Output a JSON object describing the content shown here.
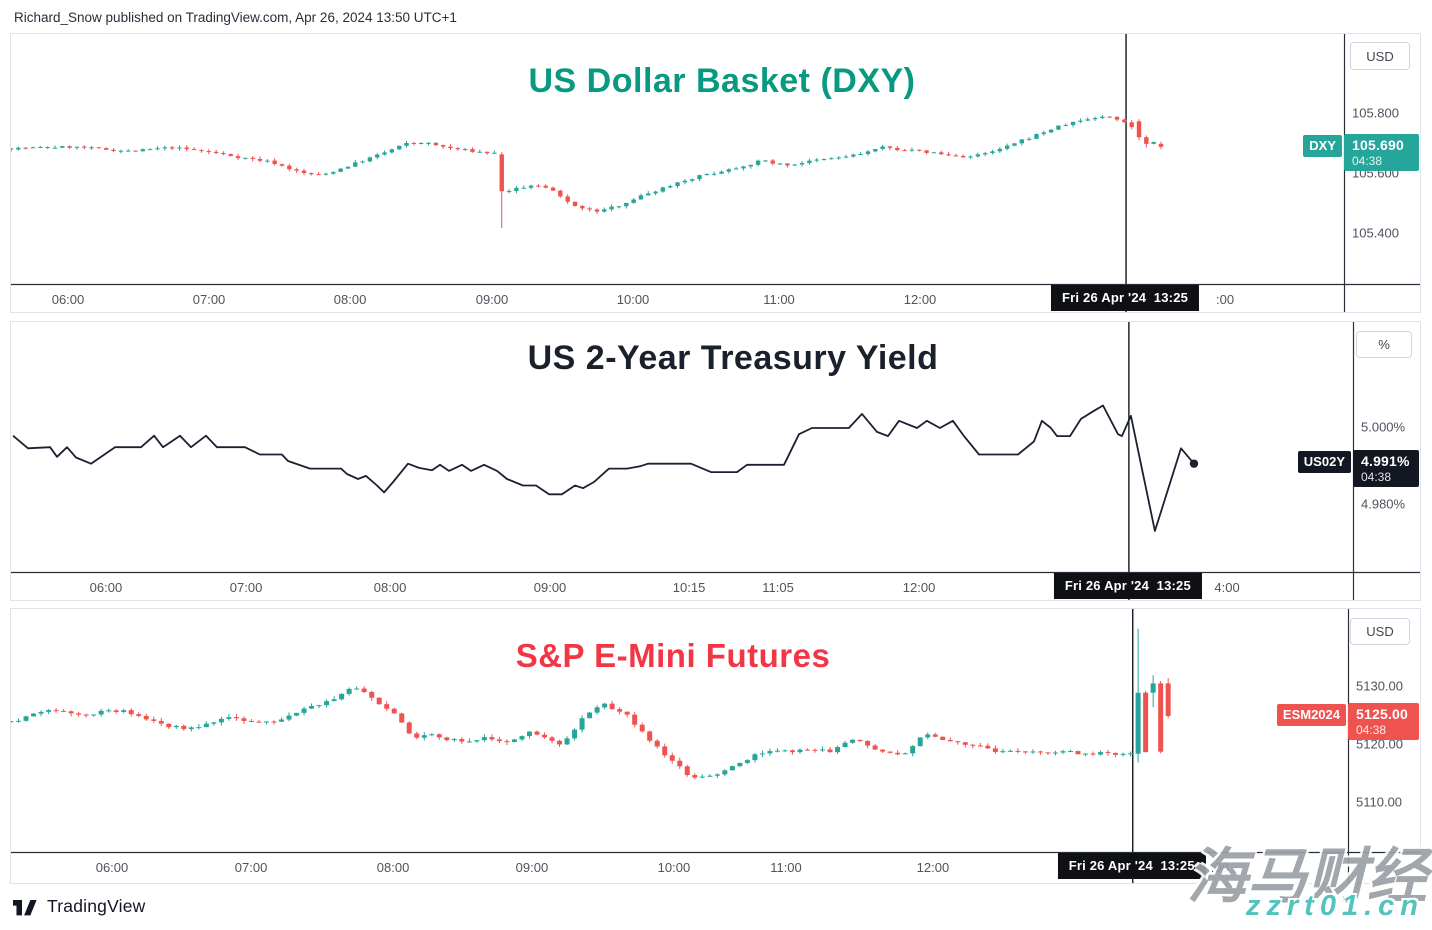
{
  "header": {
    "text": "Richard_Snow published on TradingView.com, Apr 26, 2024 13:50 UTC+1"
  },
  "footer": {
    "brand": "TradingView"
  },
  "watermark": {
    "line1": "海马财经",
    "color1": "#9aa0a6",
    "line2": "zzrt01.cn",
    "color2": "#53c3bd"
  },
  "colors": {
    "axis_line": "#2a2e39",
    "crosshair": "#131722",
    "up": "#26a69a",
    "down": "#ef5350"
  },
  "chart_data": [
    {
      "type": "candlestick",
      "title": "US Dollar Basket (DXY)",
      "title_color": "#089981",
      "unit": "USD",
      "symbol": "DXY",
      "last_value": "105.690",
      "last_change_time": "04:38",
      "last_price": 105.69,
      "label_bg": "#26a69a",
      "up_color": "#26a69a",
      "down_color": "#ef5350",
      "ylim": [
        105.233,
        106.066
      ],
      "y_ticks": [
        {
          "v": 105.8,
          "label": "105.800"
        },
        {
          "v": 105.6,
          "label": "105.600"
        },
        {
          "v": 105.4,
          "label": "105.400"
        }
      ],
      "x_ticks": [
        {
          "f": 0.0435,
          "label": "06:00"
        },
        {
          "f": 0.1493,
          "label": "07:00"
        },
        {
          "f": 0.2551,
          "label": "08:00"
        },
        {
          "f": 0.3616,
          "label": "09:00"
        },
        {
          "f": 0.4674,
          "label": "10:00"
        },
        {
          "f": 0.5769,
          "label": "11:00"
        },
        {
          "f": 0.6827,
          "label": "12:00"
        }
      ],
      "extra_tick": {
        "f": 0.9115,
        "label": ":00"
      },
      "crosshair_f": 0.8365,
      "date_label": "Fri 26 Apr '24  13:25",
      "anchors": [
        [
          0.0015,
          105.685
        ],
        [
          0.045,
          105.69
        ],
        [
          0.09,
          105.675
        ],
        [
          0.12,
          105.688
        ],
        [
          0.15,
          105.672
        ],
        [
          0.172,
          105.655
        ],
        [
          0.195,
          105.64
        ],
        [
          0.218,
          105.603
        ],
        [
          0.233,
          105.595
        ],
        [
          0.255,
          105.63
        ],
        [
          0.278,
          105.667
        ],
        [
          0.296,
          105.7
        ],
        [
          0.308,
          105.705
        ],
        [
          0.33,
          105.685
        ],
        [
          0.353,
          105.672
        ],
        [
          0.364,
          105.668
        ],
        [
          0.372,
          105.545
        ],
        [
          0.392,
          105.562
        ],
        [
          0.404,
          105.55
        ],
        [
          0.416,
          105.51
        ],
        [
          0.431,
          105.48
        ],
        [
          0.441,
          105.475
        ],
        [
          0.454,
          105.492
        ],
        [
          0.469,
          105.52
        ],
        [
          0.484,
          105.545
        ],
        [
          0.499,
          105.57
        ],
        [
          0.514,
          105.59
        ],
        [
          0.529,
          105.605
        ],
        [
          0.548,
          105.625
        ],
        [
          0.564,
          105.645
        ],
        [
          0.581,
          105.628
        ],
        [
          0.6,
          105.642
        ],
        [
          0.619,
          105.653
        ],
        [
          0.636,
          105.665
        ],
        [
          0.653,
          105.688
        ],
        [
          0.666,
          105.682
        ],
        [
          0.679,
          105.676
        ],
        [
          0.692,
          105.67
        ],
        [
          0.705,
          105.66
        ],
        [
          0.719,
          105.657
        ],
        [
          0.732,
          105.668
        ],
        [
          0.744,
          105.685
        ],
        [
          0.758,
          105.71
        ],
        [
          0.771,
          105.733
        ],
        [
          0.784,
          105.755
        ],
        [
          0.797,
          105.772
        ],
        [
          0.81,
          105.785
        ],
        [
          0.822,
          105.792
        ],
        [
          0.831,
          105.78
        ],
        [
          0.837,
          105.772
        ],
        [
          0.845,
          105.74
        ],
        [
          0.854,
          105.71
        ],
        [
          0.863,
          105.692
        ]
      ],
      "candles": {
        "count": 158,
        "last_f": 0.8627,
        "body_w": 4.4,
        "wick_noise": 0.008,
        "body_jitter": 0.008,
        "seed": 7,
        "overrides": [
          {
            "f": 0.3682,
            "o": 105.665,
            "h": 105.672,
            "l": 105.42,
            "c": 105.542
          },
          {
            "f": 0.8463,
            "o": 105.775,
            "h": 105.782,
            "l": 105.712,
            "c": 105.722
          },
          {
            "f": 0.8517,
            "o": 105.722,
            "h": 105.728,
            "l": 105.688,
            "c": 105.7
          },
          {
            "f": 0.8627,
            "o": 105.7,
            "h": 105.707,
            "l": 105.682,
            "c": 105.69
          }
        ]
      }
    },
    {
      "type": "line",
      "title": "US 2-Year Treasury Yield",
      "title_color": "#1b212c",
      "unit": "%",
      "symbol": "US02Y",
      "last_value": "4.991%",
      "last_change_time": "04:38",
      "last_price": 4.991,
      "label_bg": "#131722",
      "line_color": "#1c2030",
      "end_dot": true,
      "ylim": [
        4.9624,
        5.0277
      ],
      "y_ticks": [
        {
          "v": 5.0,
          "label": "5.000%"
        },
        {
          "v": 4.98,
          "label": "4.980%"
        }
      ],
      "x_ticks": [
        {
          "f": 0.0715,
          "label": "06:00"
        },
        {
          "f": 0.1759,
          "label": "07:00"
        },
        {
          "f": 0.2832,
          "label": "08:00"
        },
        {
          "f": 0.4024,
          "label": "09:00"
        },
        {
          "f": 0.506,
          "label": "10:15"
        },
        {
          "f": 0.5723,
          "label": "11:05"
        },
        {
          "f": 0.6774,
          "label": "12:00"
        }
      ],
      "extra_tick": {
        "f": 0.9069,
        "label": "4:00"
      },
      "crosshair_f": 0.833,
      "date_label": "Fri 26 Apr '24  13:25",
      "points": [
        [
          0.0015,
          4.998
        ],
        [
          0.0127,
          4.9947
        ],
        [
          0.0291,
          4.995
        ],
        [
          0.0343,
          4.9925
        ],
        [
          0.0417,
          4.995
        ],
        [
          0.0484,
          4.9923
        ],
        [
          0.0596,
          4.9907
        ],
        [
          0.0775,
          4.995
        ],
        [
          0.0969,
          4.995
        ],
        [
          0.1066,
          4.998
        ],
        [
          0.1133,
          4.995
        ],
        [
          0.1259,
          4.998
        ],
        [
          0.1341,
          4.995
        ],
        [
          0.1453,
          4.998
        ],
        [
          0.1535,
          4.995
        ],
        [
          0.1744,
          4.995
        ],
        [
          0.1855,
          4.9931
        ],
        [
          0.2019,
          4.9931
        ],
        [
          0.2064,
          4.9914
        ],
        [
          0.2228,
          4.9894
        ],
        [
          0.2459,
          4.9894
        ],
        [
          0.2504,
          4.988
        ],
        [
          0.2586,
          4.9867
        ],
        [
          0.2645,
          4.9875
        ],
        [
          0.2727,
          4.985
        ],
        [
          0.278,
          4.9832
        ],
        [
          0.2847,
          4.9859
        ],
        [
          0.2958,
          4.9907
        ],
        [
          0.304,
          4.9896
        ],
        [
          0.3137,
          4.989
        ],
        [
          0.3197,
          4.9904
        ],
        [
          0.3264,
          4.9888
        ],
        [
          0.3361,
          4.9904
        ],
        [
          0.3428,
          4.9888
        ],
        [
          0.3525,
          4.9904
        ],
        [
          0.3622,
          4.9888
        ],
        [
          0.3696,
          4.9867
        ],
        [
          0.3815,
          4.985
        ],
        [
          0.3912,
          4.985
        ],
        [
          0.4009,
          4.9827
        ],
        [
          0.4106,
          4.9827
        ],
        [
          0.4203,
          4.985
        ],
        [
          0.4262,
          4.9843
        ],
        [
          0.4344,
          4.9859
        ],
        [
          0.4456,
          4.9894
        ],
        [
          0.459,
          4.9894
        ],
        [
          0.4687,
          4.99
        ],
        [
          0.4747,
          4.9907
        ],
        [
          0.503,
          4.9907
        ],
        [
          0.5067,
          4.9907
        ],
        [
          0.5216,
          4.9885
        ],
        [
          0.541,
          4.9885
        ],
        [
          0.5484,
          4.9904
        ],
        [
          0.576,
          4.9904
        ],
        [
          0.5872,
          4.9984
        ],
        [
          0.5969,
          5.0
        ],
        [
          0.6244,
          5.0
        ],
        [
          0.6341,
          5.0037
        ],
        [
          0.6453,
          4.999
        ],
        [
          0.6535,
          4.9979
        ],
        [
          0.6617,
          5.0019
        ],
        [
          0.6751,
          5.0
        ],
        [
          0.6825,
          5.0019
        ],
        [
          0.6922,
          5.0
        ],
        [
          0.7019,
          5.0019
        ],
        [
          0.7101,
          4.9979
        ],
        [
          0.7213,
          4.9931
        ],
        [
          0.7504,
          4.9931
        ],
        [
          0.7623,
          4.9965
        ],
        [
          0.7682,
          5.0019
        ],
        [
          0.7749,
          5.0
        ],
        [
          0.7794,
          4.9979
        ],
        [
          0.7891,
          4.9979
        ],
        [
          0.7973,
          5.0024
        ],
        [
          0.807,
          5.0045
        ],
        [
          0.8137,
          5.0059
        ],
        [
          0.8249,
          4.9984
        ],
        [
          0.8278,
          4.9979
        ],
        [
          0.8345,
          5.0032
        ],
        [
          0.8524,
          4.9731
        ],
        [
          0.8718,
          4.9947
        ],
        [
          0.8815,
          4.9907
        ]
      ]
    },
    {
      "type": "candlestick",
      "title": "S&P E-Mini Futures",
      "title_color": "#f23645",
      "unit": "USD",
      "symbol": "ESM2024",
      "last_value": "5125.00",
      "last_change_time": "04:38",
      "last_price": 5125.0,
      "label_bg": "#ef5350",
      "up_color": "#26a69a",
      "down_color": "#ef5350",
      "ylim": [
        5101.6,
        5143.4
      ],
      "y_ticks": [
        {
          "v": 5130,
          "label": "5130.00"
        },
        {
          "v": 5120,
          "label": "5120.00"
        },
        {
          "v": 5110,
          "label": "5110.00"
        }
      ],
      "x_ticks": [
        {
          "f": 0.0763,
          "label": "06:00"
        },
        {
          "f": 0.1803,
          "label": "07:00"
        },
        {
          "f": 0.2865,
          "label": "08:00"
        },
        {
          "f": 0.3904,
          "label": "09:00"
        },
        {
          "f": 0.4966,
          "label": "10:00"
        },
        {
          "f": 0.5804,
          "label": "11:00"
        },
        {
          "f": 0.6903,
          "label": "12:00"
        }
      ],
      "extra_tick": {
        "f": 0.9049,
        "label": ":00"
      },
      "crosshair_f": 0.839,
      "date_label": "Fri 26 Apr '24  13:25",
      "anchors": [
        [
          0.0015,
          5124.0
        ],
        [
          0.0149,
          5125.3
        ],
        [
          0.0336,
          5126.0
        ],
        [
          0.0486,
          5125.0
        ],
        [
          0.0635,
          5125.6
        ],
        [
          0.0822,
          5126.0
        ],
        [
          0.0934,
          5125.0
        ],
        [
          0.1046,
          5124.0
        ],
        [
          0.1158,
          5123.4
        ],
        [
          0.1308,
          5122.8
        ],
        [
          0.1457,
          5123.5
        ],
        [
          0.1607,
          5124.6
        ],
        [
          0.1756,
          5124.2
        ],
        [
          0.1906,
          5123.8
        ],
        [
          0.2018,
          5124.6
        ],
        [
          0.2167,
          5126.0
        ],
        [
          0.2354,
          5127.4
        ],
        [
          0.2466,
          5128.4
        ],
        [
          0.2556,
          5130.2
        ],
        [
          0.2653,
          5129.0
        ],
        [
          0.2728,
          5127.6
        ],
        [
          0.2803,
          5126.6
        ],
        [
          0.2915,
          5124.2
        ],
        [
          0.3004,
          5121.4
        ],
        [
          0.3102,
          5121.8
        ],
        [
          0.3214,
          5121.4
        ],
        [
          0.3326,
          5120.7
        ],
        [
          0.3438,
          5120.9
        ],
        [
          0.355,
          5121.3
        ],
        [
          0.3662,
          5120.4
        ],
        [
          0.3774,
          5121.0
        ],
        [
          0.3886,
          5122.2
        ],
        [
          0.3999,
          5121.0
        ],
        [
          0.4096,
          5120.0
        ],
        [
          0.42,
          5122.0
        ],
        [
          0.4275,
          5124.5
        ],
        [
          0.4372,
          5126.6
        ],
        [
          0.4447,
          5126.9
        ],
        [
          0.4522,
          5126.0
        ],
        [
          0.4596,
          5125.4
        ],
        [
          0.4709,
          5122.5
        ],
        [
          0.4821,
          5120.0
        ],
        [
          0.4933,
          5117.5
        ],
        [
          0.5045,
          5115.2
        ],
        [
          0.5157,
          5114.3
        ],
        [
          0.5247,
          5114.8
        ],
        [
          0.5344,
          5115.8
        ],
        [
          0.5471,
          5117.2
        ],
        [
          0.5568,
          5118.3
        ],
        [
          0.568,
          5118.9
        ],
        [
          0.583,
          5118.8
        ],
        [
          0.5979,
          5119.3
        ],
        [
          0.6129,
          5119.0
        ],
        [
          0.6241,
          5120.4
        ],
        [
          0.633,
          5120.9
        ],
        [
          0.6427,
          5119.4
        ],
        [
          0.6517,
          5119.1
        ],
        [
          0.6614,
          5118.2
        ],
        [
          0.6704,
          5118.8
        ],
        [
          0.6779,
          5121.2
        ],
        [
          0.6854,
          5122.0
        ],
        [
          0.6928,
          5121.5
        ],
        [
          0.7003,
          5120.8
        ],
        [
          0.7085,
          5120.4
        ],
        [
          0.7175,
          5120.1
        ],
        [
          0.7265,
          5119.6
        ],
        [
          0.7399,
          5118.7
        ],
        [
          0.7549,
          5119.1
        ],
        [
          0.7698,
          5118.6
        ],
        [
          0.7848,
          5119.0
        ],
        [
          0.7997,
          5118.4
        ],
        [
          0.8146,
          5118.7
        ],
        [
          0.8311,
          5118.5
        ],
        [
          0.8371,
          5118.6
        ]
      ],
      "candles": {
        "count": 155,
        "last_f": 0.8655,
        "body_w": 5,
        "wick_noise": 0.55,
        "body_jitter": 0.55,
        "seed": 3,
        "overrides": [
          {
            "f": 0.843,
            "o": 5118.5,
            "h": 5140.0,
            "l": 5117.0,
            "c": 5129.0
          },
          {
            "f": 0.8543,
            "o": 5129.0,
            "h": 5132.0,
            "l": 5126.5,
            "c": 5130.6
          },
          {
            "f": 0.8655,
            "o": 5130.6,
            "h": 5131.5,
            "l": 5124.6,
            "c": 5125.0
          }
        ]
      }
    }
  ]
}
